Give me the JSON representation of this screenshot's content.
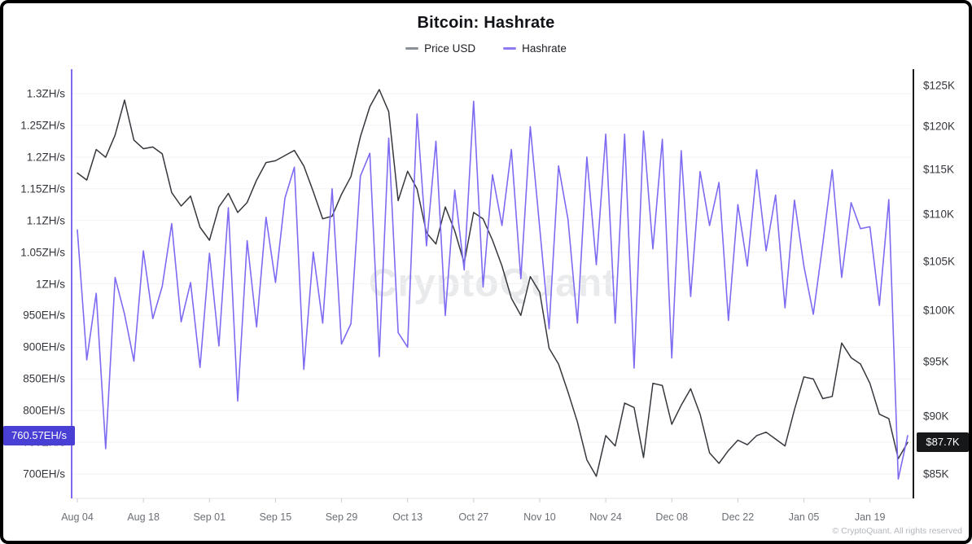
{
  "title": "Bitcoin: Hashrate",
  "legend": {
    "price": {
      "label": "Price USD",
      "color": "#8a8f98"
    },
    "hashrate": {
      "label": "Hashrate",
      "color": "#8c7bf4"
    }
  },
  "watermark": "CryptoQuant",
  "copyright": "© CryptoQuant. All rights reserved",
  "badges": {
    "hashrate_label": "760.57EH/s",
    "price_label": "$87.7K"
  },
  "colors": {
    "price_line": "#35383d",
    "hashrate_line": "#7d6bf2",
    "hashrate_badge_bg": "#4a3fd4",
    "price_badge_bg": "#17181a",
    "grid": "#f1f2f4",
    "baseline": "#e3e5e8",
    "tick": "#c9ccd1",
    "left_axis_line": "#7d6bf2",
    "right_axis_line": "#1a1a1a"
  },
  "chart_data": {
    "type": "line",
    "title": "Bitcoin: Hashrate",
    "legend_position": "top",
    "grid": "horizontal",
    "left_axis": {
      "name": "Hashrate",
      "unit": "EH/s",
      "scale": "linear",
      "range": [
        660,
        1320
      ],
      "ticks": [
        {
          "label": "1.3ZH/s",
          "value": 1300
        },
        {
          "label": "1.25ZH/s",
          "value": 1250
        },
        {
          "label": "1.2ZH/s",
          "value": 1200
        },
        {
          "label": "1.15ZH/s",
          "value": 1150
        },
        {
          "label": "1.1ZH/s",
          "value": 1100
        },
        {
          "label": "1.05ZH/s",
          "value": 1050
        },
        {
          "label": "1ZH/s",
          "value": 1000
        },
        {
          "label": "950EH/s",
          "value": 950
        },
        {
          "label": "900EH/s",
          "value": 900
        },
        {
          "label": "850EH/s",
          "value": 850
        },
        {
          "label": "800EH/s",
          "value": 800
        },
        {
          "label": "750EH/s",
          "value": 750
        },
        {
          "label": "700EH/s",
          "value": 700
        }
      ]
    },
    "right_axis": {
      "name": "Price USD",
      "unit": "K USD",
      "scale": "log",
      "range": [
        83.5,
        126.5
      ],
      "ticks": [
        {
          "label": "$125K",
          "value": 125
        },
        {
          "label": "$120K",
          "value": 120
        },
        {
          "label": "$115K",
          "value": 115
        },
        {
          "label": "$110K",
          "value": 110
        },
        {
          "label": "$105K",
          "value": 105
        },
        {
          "label": "$100K",
          "value": 100
        },
        {
          "label": "$95K",
          "value": 95
        },
        {
          "label": "$90K",
          "value": 90
        },
        {
          "label": "$85K",
          "value": 85
        }
      ]
    },
    "x_ticks": [
      {
        "label": "Aug 04",
        "index": 0
      },
      {
        "label": "Aug 18",
        "index": 7
      },
      {
        "label": "Sep 01",
        "index": 14
      },
      {
        "label": "Sep 15",
        "index": 21
      },
      {
        "label": "Sep 29",
        "index": 28
      },
      {
        "label": "Oct 13",
        "index": 35
      },
      {
        "label": "Oct 27",
        "index": 42
      },
      {
        "label": "Nov 10",
        "index": 49
      },
      {
        "label": "Nov 24",
        "index": 56
      },
      {
        "label": "Dec 08",
        "index": 63
      },
      {
        "label": "Dec 22",
        "index": 70
      },
      {
        "label": "Jan 05",
        "index": 77
      },
      {
        "label": "Jan 19",
        "index": 84
      }
    ],
    "dates": [
      "Aug 04",
      "Aug 06",
      "Aug 08",
      "Aug 10",
      "Aug 12",
      "Aug 14",
      "Aug 16",
      "Aug 18",
      "Aug 20",
      "Aug 22",
      "Aug 24",
      "Aug 26",
      "Aug 28",
      "Aug 30",
      "Sep 01",
      "Sep 03",
      "Sep 05",
      "Sep 07",
      "Sep 09",
      "Sep 11",
      "Sep 13",
      "Sep 15",
      "Sep 17",
      "Sep 19",
      "Sep 21",
      "Sep 23",
      "Sep 25",
      "Sep 27",
      "Sep 29",
      "Oct 01",
      "Oct 03",
      "Oct 05",
      "Oct 07",
      "Oct 09",
      "Oct 11",
      "Oct 13",
      "Oct 15",
      "Oct 17",
      "Oct 19",
      "Oct 21",
      "Oct 23",
      "Oct 25",
      "Oct 27",
      "Oct 29",
      "Oct 31",
      "Nov 02",
      "Nov 04",
      "Nov 06",
      "Nov 08",
      "Nov 10",
      "Nov 12",
      "Nov 14",
      "Nov 16",
      "Nov 18",
      "Nov 20",
      "Nov 22",
      "Nov 24",
      "Nov 26",
      "Nov 28",
      "Nov 30",
      "Dec 02",
      "Dec 04",
      "Dec 06",
      "Dec 08",
      "Dec 10",
      "Dec 12",
      "Dec 14",
      "Dec 16",
      "Dec 18",
      "Dec 20",
      "Dec 22",
      "Dec 24",
      "Dec 26",
      "Dec 28",
      "Dec 30",
      "Jan 01",
      "Jan 03",
      "Jan 05",
      "Jan 07",
      "Jan 09",
      "Jan 11",
      "Jan 13",
      "Jan 15",
      "Jan 17",
      "Jan 19",
      "Jan 21",
      "Jan 23",
      "Jan 25",
      "Jan 27"
    ],
    "series": [
      {
        "name": "Price USD",
        "axis": "right",
        "unit": "K USD",
        "values": [
          114.6,
          113.8,
          117.3,
          116.4,
          119.0,
          123.2,
          118.4,
          117.4,
          117.6,
          116.8,
          112.4,
          110.9,
          112.0,
          108.6,
          107.2,
          110.8,
          112.3,
          110.2,
          111.3,
          113.8,
          115.8,
          116.0,
          116.6,
          117.2,
          115.4,
          112.5,
          109.5,
          109.8,
          112.2,
          114.2,
          118.8,
          122.4,
          124.5,
          121.8,
          111.5,
          114.8,
          112.8,
          108.0,
          106.8,
          110.8,
          108.2,
          104.8,
          110.2,
          109.5,
          107.2,
          104.5,
          101.2,
          99.5,
          103.4,
          101.8,
          96.3,
          94.8,
          92.2,
          89.5,
          86.2,
          84.8,
          88.3,
          87.4,
          91.2,
          90.8,
          86.4,
          93.0,
          92.8,
          89.3,
          91.0,
          92.5,
          90.2,
          86.8,
          85.9,
          87.0,
          87.9,
          87.5,
          88.3,
          88.6,
          88.0,
          87.4,
          90.6,
          93.6,
          93.4,
          91.6,
          91.8,
          96.8,
          95.4,
          94.8,
          93.0,
          90.2,
          89.8,
          86.3,
          87.7
        ]
      },
      {
        "name": "Hashrate",
        "axis": "left",
        "unit": "EH/s",
        "values": [
          1085,
          880,
          985,
          740,
          1010,
          952,
          878,
          1052,
          945,
          996,
          1095,
          940,
          1002,
          868,
          1048,
          902,
          1120,
          815,
          1068,
          932,
          1105,
          1002,
          1135,
          1184,
          865,
          1050,
          938,
          1150,
          905,
          937,
          1170,
          1206,
          885,
          1230,
          923,
          900,
          1268,
          1060,
          1225,
          950,
          1148,
          1022,
          1288,
          995,
          1172,
          1092,
          1212,
          1008,
          1248,
          1088,
          929,
          1186,
          1102,
          938,
          1200,
          1030,
          1236,
          938,
          1236,
          867,
          1241,
          1055,
          1228,
          883,
          1210,
          980,
          1177,
          1092,
          1160,
          942,
          1125,
          1028,
          1180,
          1052,
          1140,
          962,
          1132,
          1028,
          952,
          1063,
          1180,
          1010,
          1128,
          1087,
          1090,
          966,
          1133,
          692,
          760.57
        ]
      }
    ],
    "last_values": {
      "hashrate_ehs": 760.57,
      "price_usd_k": 87.7
    }
  }
}
